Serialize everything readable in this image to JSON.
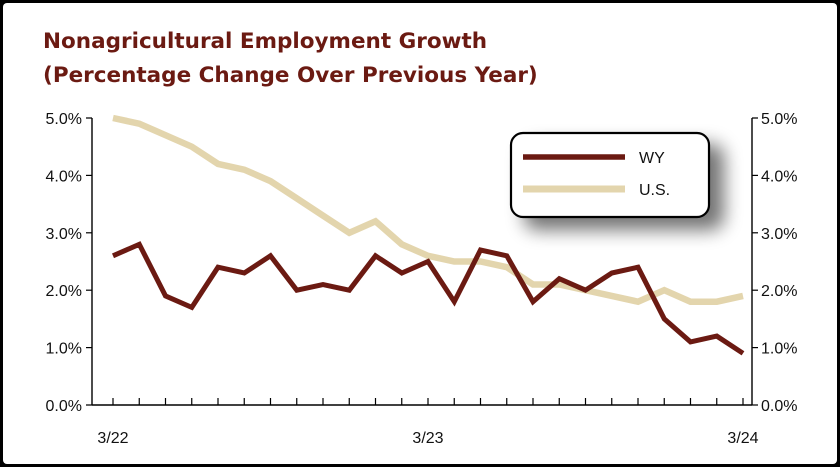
{
  "chart_data": {
    "type": "line",
    "title": "Nonagricultural Employment Growth",
    "subtitle": "(Percentage Change Over Previous Year)",
    "xlabel": "",
    "ylabel": "",
    "ylim": [
      0,
      5
    ],
    "y_ticks": [
      "0.0%",
      "1.0%",
      "2.0%",
      "3.0%",
      "4.0%",
      "5.0%"
    ],
    "x_tick_labels": [
      {
        "label": "3/22",
        "index": 0
      },
      {
        "label": "3/23",
        "index": 12
      },
      {
        "label": "3/24",
        "index": 24
      }
    ],
    "x": [
      "3/22",
      "4/22",
      "5/22",
      "6/22",
      "7/22",
      "8/22",
      "9/22",
      "10/22",
      "11/22",
      "12/22",
      "1/23",
      "2/23",
      "3/23",
      "4/23",
      "5/23",
      "6/23",
      "7/23",
      "8/23",
      "9/23",
      "10/23",
      "11/23",
      "12/23",
      "1/24",
      "2/24",
      "3/24"
    ],
    "grid": false,
    "legend": "top-right",
    "series": [
      {
        "name": "WY",
        "color": "#6b1a12",
        "values": [
          2.6,
          2.8,
          1.9,
          1.7,
          2.4,
          2.3,
          2.6,
          2.0,
          2.1,
          2.0,
          2.6,
          2.3,
          2.5,
          1.8,
          2.7,
          2.6,
          1.8,
          2.2,
          2.0,
          2.3,
          2.4,
          1.5,
          1.1,
          1.2,
          0.9
        ]
      },
      {
        "name": "U.S.",
        "color": "#e3d5ad",
        "values": [
          5.0,
          4.9,
          4.7,
          4.5,
          4.2,
          4.1,
          3.9,
          3.6,
          3.3,
          3.0,
          3.2,
          2.8,
          2.6,
          2.5,
          2.5,
          2.4,
          2.1,
          2.1,
          2.0,
          1.9,
          1.8,
          2.0,
          1.8,
          1.8,
          1.9
        ]
      }
    ]
  }
}
